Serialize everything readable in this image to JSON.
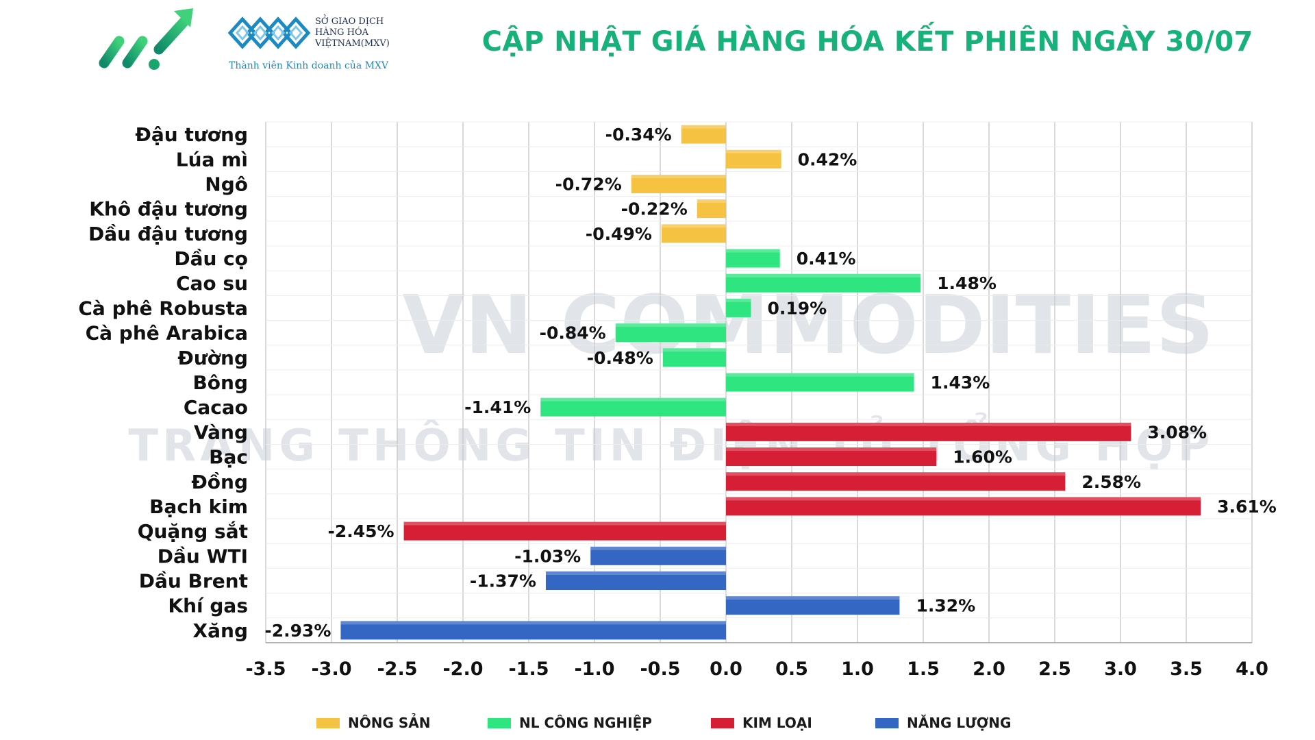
{
  "header": {
    "title": "CẬP NHẬT GIÁ HÀNG HÓA KẾT PHIÊN NGÀY 30/07",
    "mxv_line1": "SỞ GIAO DỊCH",
    "mxv_line2": "HÀNG HÓA",
    "mxv_line3": "VIỆTNAM(MXV)",
    "mxv_tagline": "Thành viên Kinh doanh của MXV",
    "title_color": "#16b27a"
  },
  "watermark": {
    "line1": "VN COMMODITIES",
    "line2": "TRANG THÔNG TIN ĐIỆN TỬ TỔNG HỢP"
  },
  "legend": [
    {
      "label": "NÔNG SẢN",
      "color": "#f5c242"
    },
    {
      "label": "NL CÔNG NGHIỆP",
      "color": "#2ee57f"
    },
    {
      "label": "KIM LOẠI",
      "color": "#d61f35"
    },
    {
      "label": "NĂNG LƯỢNG",
      "color": "#3466c4"
    }
  ],
  "chart_data": {
    "type": "bar",
    "orientation": "horizontal",
    "xlim": [
      -3.5,
      4.0
    ],
    "xticks": [
      "-3.5",
      "-3.0",
      "-2.5",
      "-2.0",
      "-1.5",
      "-1.0",
      "-0.5",
      "0.0",
      "0.5",
      "1.0",
      "1.5",
      "2.0",
      "2.5",
      "3.0",
      "3.5",
      "4.0"
    ],
    "grid": true,
    "legend_position": "bottom",
    "categories": [
      "Đậu tương",
      "Lúa mì",
      "Ngô",
      "Khô đậu tương",
      "Dầu đậu tương",
      "Dầu cọ",
      "Cao su",
      "Cà phê Robusta",
      "Cà phê Arabica",
      "Đường",
      "Bông",
      "Cacao",
      "Vàng",
      "Bạc",
      "Đồng",
      "Bạch kim",
      "Quặng sắt",
      "Dầu WTI",
      "Dầu Brent",
      "Khí gas",
      "Xăng"
    ],
    "values": [
      -0.34,
      0.42,
      -0.72,
      -0.22,
      -0.49,
      0.41,
      1.48,
      0.19,
      -0.84,
      -0.48,
      1.43,
      -1.41,
      3.08,
      1.6,
      2.58,
      3.61,
      -2.45,
      -1.03,
      -1.37,
      1.32,
      -2.93
    ],
    "labels": [
      "-0.34%",
      "0.42%",
      "-0.72%",
      "-0.22%",
      "-0.49%",
      "0.41%",
      "1.48%",
      "0.19%",
      "-0.84%",
      "-0.48%",
      "1.43%",
      "-1.41%",
      "3.08%",
      "1.60%",
      "2.58%",
      "3.61%",
      "-2.45%",
      "-1.03%",
      "-1.37%",
      "1.32%",
      "-2.93%"
    ],
    "groups": [
      0,
      0,
      0,
      0,
      0,
      1,
      1,
      1,
      1,
      1,
      1,
      1,
      2,
      2,
      2,
      2,
      2,
      3,
      3,
      3,
      3
    ]
  }
}
